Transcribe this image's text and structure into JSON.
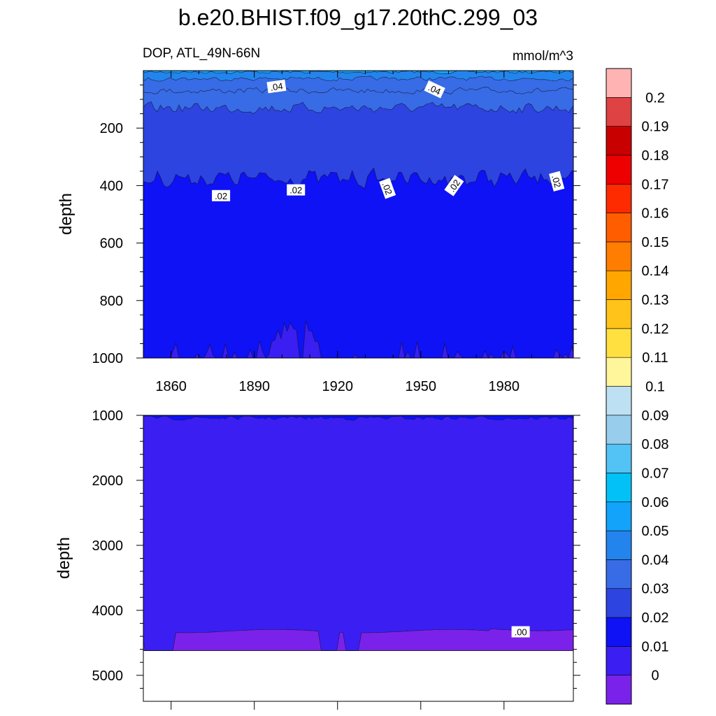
{
  "chart_data": {
    "type": "heatmap",
    "subtype": "filled-contour depth-time section",
    "title": "b.e20.BHIST.f09_g17.20thC.299_03",
    "variable_label": "DOP, ATL_49N-66N",
    "units": "mmol/m^3",
    "ylabel": "depth",
    "xlim": [
      1850,
      2005
    ],
    "x_ticks": [
      1860,
      1890,
      1920,
      1950,
      1980
    ],
    "panels": [
      {
        "name": "upper",
        "ylim": [
          0,
          1000
        ],
        "y_reversed": true,
        "y_ticks": [
          200,
          400,
          600,
          800,
          1000
        ],
        "contour_labels": [
          {
            "text": ".04",
            "x": 1898,
            "depth": 55,
            "angle": -8
          },
          {
            "text": ".04",
            "x": 1955,
            "depth": 65,
            "angle": 25
          },
          {
            "text": ".02",
            "x": 1878,
            "depth": 435,
            "angle": 0
          },
          {
            "text": ".02",
            "x": 1905,
            "depth": 415,
            "angle": 0
          },
          {
            "text": ".02",
            "x": 1938,
            "depth": 410,
            "angle": 70
          },
          {
            "text": ".02",
            "x": 1962,
            "depth": 400,
            "angle": -55
          },
          {
            "text": ".02",
            "x": 1999,
            "depth": 385,
            "angle": 75
          }
        ]
      },
      {
        "name": "lower",
        "ylim": [
          1000,
          5400
        ],
        "y_reversed": true,
        "y_ticks": [
          1000,
          2000,
          3000,
          4000,
          5000
        ],
        "bottom_depth": 4620,
        "contour_labels": [
          {
            "text": ".00",
            "x": 1986,
            "depth": 4330,
            "angle": 0
          }
        ]
      }
    ],
    "colorbar": {
      "levels": [
        0,
        0.01,
        0.02,
        0.03,
        0.04,
        0.05,
        0.06,
        0.07,
        0.08,
        0.09,
        0.1,
        0.11,
        0.12,
        0.13,
        0.14,
        0.15,
        0.16,
        0.17,
        0.18,
        0.19,
        0.2
      ],
      "labels": [
        "0",
        "0.01",
        "0.02",
        "0.03",
        "0.04",
        "0.05",
        "0.06",
        "0.07",
        "0.08",
        "0.09",
        "0.1",
        "0.11",
        "0.12",
        "0.13",
        "0.14",
        "0.15",
        "0.16",
        "0.17",
        "0.18",
        "0.19",
        "0.2"
      ],
      "colors": [
        "#7b22ea",
        "#3b1ef2",
        "#0e12f5",
        "#2d44e0",
        "#386be6",
        "#2384ee",
        "#13a3fa",
        "#02c1f7",
        "#53c2f4",
        "#98cdeb",
        "#bde0f2",
        "#fff59a",
        "#ffe040",
        "#ffc31a",
        "#ffa600",
        "#ff7d00",
        "#ff5d00",
        "#ff2b00",
        "#ee0000",
        "#c90000",
        "#de4242",
        "#ffb3b3"
      ]
    }
  }
}
